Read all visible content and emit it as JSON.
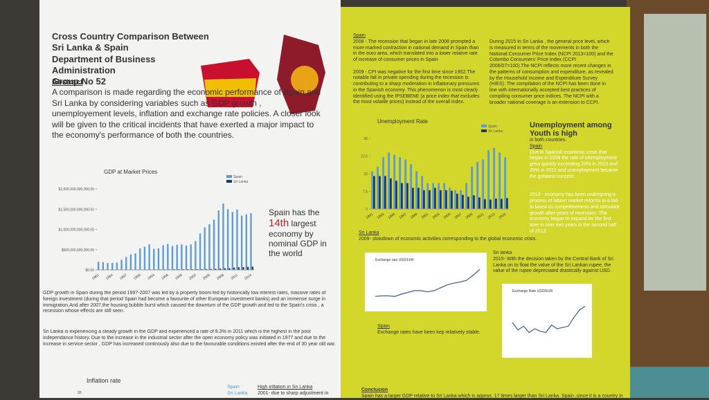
{
  "left_panel": {
    "title_lines": [
      "Cross Country Comparison Between Sri Lanka & Spain",
      "Department of Business Administration",
      "Group.No 52"
    ],
    "abstract_heading": "Abstract",
    "abstract_text": "A comparison is made regarding the economic performance of Spain and Sri Lanka by considering variables such as GDP growth , unemployement levels, inflation and exchange rate policies. A closer look will be given to the critical incidents that have exerted a major impact to the economy's performance of both the countries.",
    "gdp_chart": {
      "type": "bar",
      "title": "GDP at Market Prices",
      "categories": [
        "1981",
        null,
        null,
        "1984",
        null,
        null,
        "1987",
        null,
        null,
        "1990",
        null,
        null,
        "1993",
        null,
        null,
        "1996",
        null,
        null,
        "1999",
        null,
        null,
        "2002",
        null,
        null,
        "2005",
        null,
        null,
        "2008",
        null,
        null,
        "2011",
        null,
        null,
        "2014"
      ],
      "series": [
        {
          "name": "Spain",
          "color": "#5b9bd5",
          "values": [
            200000000000,
            190000000000,
            170000000000,
            170000000000,
            180000000000,
            250000000000,
            320000000000,
            380000000000,
            410000000000,
            530000000000,
            570000000000,
            630000000000,
            520000000000,
            530000000000,
            610000000000,
            640000000000,
            590000000000,
            620000000000,
            630000000000,
            600000000000,
            630000000000,
            710000000000,
            900000000000,
            1050000000000,
            1130000000000,
            1240000000000,
            1470000000000,
            1640000000000,
            1500000000000,
            1430000000000,
            1490000000000,
            1340000000000,
            1370000000000,
            1400000000000
          ]
        },
        {
          "name": "Sri Lanka",
          "color": "#1f3864",
          "values": [
            4000000000,
            4000000000,
            5000000000,
            6000000000,
            6000000000,
            6000000000,
            7000000000,
            7000000000,
            7000000000,
            8000000000,
            9000000000,
            10000000000,
            10000000000,
            12000000000,
            13000000000,
            14000000000,
            15000000000,
            16000000000,
            16000000000,
            16000000000,
            16000000000,
            17000000000,
            19000000000,
            21000000000,
            24000000000,
            28000000000,
            32000000000,
            41000000000,
            42000000000,
            57000000000,
            65000000000,
            68000000000,
            74000000000,
            79000000000
          ]
        }
      ],
      "ylim": [
        0,
        2000000000000
      ],
      "yticks": [
        {
          "value": 0,
          "label": "$0.00"
        },
        {
          "value": 500000000000,
          "label": "$500,000,000,000.00"
        },
        {
          "value": 1000000000000,
          "label": "$1,000,000,000,000.00"
        },
        {
          "value": 1500000000000,
          "label": "$1,500,000,000,000.00"
        },
        {
          "value": 2000000000000,
          "label": "$2,000,000,000,000.00"
        }
      ]
    },
    "callout_lead": "Spain has the",
    "callout_rank": "14th",
    "callout_rest": "largest economy by nominal GDP in the world",
    "paragraphs": [
      "GDP growth in Spain during the period 1997-2007 was led by a property boom fed by historically low interest rates, massive rates of foreign investment (during that period Spain had become a favourite of other European investment banks) and an immense surge in immigration.And after 2007,the housing bubble burst which caused the downturn of the GDP growth and led to the Spain's crisis , a recession whose effects are still seen.",
      "Sri Lanka is experiencing a steady growth in the GDP and experienced a rate of 8.3% in 2011 which is the highest in the post independance history. Due to the increase in the industrial sector after the open economy policy was initiated in 1977 and due to the increase in service sector , GDP has increased continously also due to the favourable conditions existed after the end of 30 year old war."
    ],
    "inflation_title": "Inflation rate",
    "inflation_legend": [
      "Spain",
      "Sri Lanka"
    ],
    "inflation_tick": "20",
    "inflation_heading": "High inflation in Sri Lanka",
    "inflation_text": "2001- due to sharp adjustment in"
  },
  "right_panel": {
    "spain_heading": "Spain",
    "spain_texts": [
      "2008 - The recession that began in late 2008 prompted a more marked contraction in national demand in Spain than in the euro area, which translated into a lower relative rate of increase of consumer prices in Spain",
      "2009 - CPI was negative for the first time since 1952.The notable fall in private spending during the recession is contributing to a sharp moderation in inflationary pressures in the Spanish economy. This phenomenon is most clearly identified using the IPSEBENE (a price index that excludes the most volatile prices) instead of the overall index."
    ],
    "srilanka_cpi_text": "During 2015 In Sri Lanka , the general price level, which is measured in terms of the movements in both the National Consumer Price Index (NCPI 2013=100) and the Colombo Consumers' Price Index (CCPI 2006/07=100).The NCPI reflects more recent changes in the patterns of consumption and expenditure, as revealed by the Household Income and Expenditure Survey (HIES). The compilation of the NCPI has been done in line with internationally accepted best practices of compiling consumer price indices. The NCPI with a broader national coverage is an extension to CCPI.",
    "unemp_chart": {
      "type": "bar",
      "title": "Unemployment Rate",
      "categories": [
        "1991",
        null,
        "1993",
        null,
        "1995",
        null,
        "1997",
        null,
        "1999",
        null,
        "2001",
        null,
        "2003",
        null,
        "2005",
        null,
        "2007",
        null,
        "2009",
        null,
        "2011",
        null,
        "2013",
        null,
        "2015"
      ],
      "series": [
        {
          "name": "Spain",
          "color": "#5b9bd5",
          "values": [
            16,
            18,
            22,
            24,
            23,
            22,
            21,
            19,
            16,
            14,
            11,
            11,
            11,
            11,
            9,
            8,
            8,
            11,
            18,
            20,
            21,
            25,
            26,
            24,
            22
          ]
        },
        {
          "name": "Sri Lanka",
          "color": "#1f3864",
          "values": [
            14,
            14,
            14,
            13,
            12,
            11,
            11,
            9,
            9,
            8,
            8,
            9,
            8,
            8,
            7.7,
            6.5,
            6,
            5.2,
            5.8,
            4.9,
            4.2,
            4,
            4.4,
            4.3,
            4.6
          ]
        }
      ],
      "ylim": [
        0,
        30
      ],
      "yticks": [
        0,
        7.5,
        15,
        22.5,
        30
      ]
    },
    "youth_heading": "Unemployment among Youth is high",
    "youth_sub": "in both countries.",
    "youth_spain_heading": "Spain",
    "youth_spain_text": "Due to Spanish economic crisis that began in 2008 the rate of unemployment grew quickly exceeding 20% in 2010 and 25% in 2012 and unemployment became the greatest concern .",
    "youth_note": "2013 - economy has been undergoing a process of labour market reforms in a bid to boost its competitiveness and stimulate growth after years of recession. The economy began to expand for the first time in over two years in the second half of 2013",
    "sl_heading": "Sri Lanka",
    "sl_text": "2009- slowdown of economic activities corresponding to the global economic crisis.",
    "ex_lkr": {
      "type": "line",
      "title": "Exchange rate USD/LKR",
      "values": [
        103,
        104,
        104,
        103,
        107,
        110,
        113,
        113,
        111,
        113,
        118,
        123,
        126,
        128,
        131,
        140,
        150
      ],
      "ylim": [
        95,
        155
      ]
    },
    "ex_eur": {
      "type": "line",
      "title": "Exchange Rate USD/EUR",
      "values": [
        0.8,
        0.74,
        0.77,
        0.72,
        0.75,
        0.73,
        0.72,
        0.78,
        0.75,
        0.76,
        0.77,
        0.84,
        0.9,
        0.93
      ],
      "ylim": [
        0.6,
        1
      ]
    },
    "sl2015_heading": "Sri lanka",
    "sl2015_text": "2015- With the decision taken by the Central Bank of Sri Lanka on to float the value of the Sri Lankan rupee, the value of the rupee depreciated drastically against USD.",
    "ex_spain_heading": "Spain",
    "ex_spain_text": "Exchange rates have been kep relatively stable.",
    "conclusion_heading": "Conclusion",
    "conclusion_text": "Spain has a larger GDP relative to Sri Lanka which is approx. 17 times larger than Sri Lanka. Spain ,since it is a country in"
  }
}
